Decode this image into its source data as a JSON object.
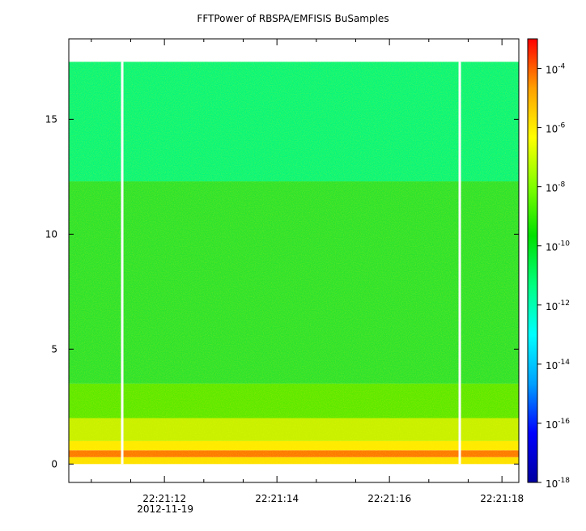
{
  "chart_data": {
    "type": "heatmap",
    "title": "FFTPower of RBSPA/EMFISIS  BuSamples",
    "xlabel": "",
    "ylabel": "",
    "ylim": [
      -0.8,
      18.5
    ],
    "y_ticks": [
      {
        "value": 0,
        "label": "0"
      },
      {
        "value": 5,
        "label": "5"
      },
      {
        "value": 10,
        "label": "10"
      },
      {
        "value": 15,
        "label": "15"
      }
    ],
    "x_ticks": [
      {
        "time": "22:21:12",
        "label": "22:21:12",
        "sublabel": "2012-11-19"
      },
      {
        "time": "22:21:14",
        "label": "22:21:14",
        "sublabel": ""
      },
      {
        "time": "22:21:16",
        "label": "22:21:16",
        "sublabel": ""
      },
      {
        "time": "22:21:18",
        "label": "22:21:18",
        "sublabel": ""
      }
    ],
    "x_range_seconds_of_minute": [
      10.3,
      18.3
    ],
    "minor_ticks_seconds": [
      10.7,
      11.4,
      12.7,
      13.4,
      14.7,
      15.4,
      16.7,
      17.4
    ],
    "data_gaps_seconds": [
      11.25,
      17.25
    ],
    "data_extent": {
      "x_seconds": [
        10.3,
        18.3
      ],
      "y": [
        0,
        17.5
      ]
    },
    "colorbar": {
      "scale": "log",
      "range": [
        1e-18,
        0.001
      ],
      "tick_exponents": [
        -18,
        -16,
        -14,
        -12,
        -10,
        -8,
        -6,
        -4
      ],
      "tick_base": "10",
      "colors": [
        "#0000a0",
        "#0000ff",
        "#00a0ff",
        "#00ffff",
        "#00ff80",
        "#00e000",
        "#80ff00",
        "#ffff00",
        "#ffa000",
        "#ff0000"
      ]
    },
    "bands": [
      {
        "y_range": [
          0,
          0.3
        ],
        "level_exponent": -8.8,
        "color": "#ffe000"
      },
      {
        "y_range": [
          0.3,
          0.6
        ],
        "level_exponent": -7.3,
        "color": "#ff7800"
      },
      {
        "y_range": [
          0.6,
          1.0
        ],
        "level_exponent": -8.5,
        "color": "#ffea00"
      },
      {
        "y_range": [
          1.0,
          2.0
        ],
        "level_exponent": -9.2,
        "color": "#c8f000"
      },
      {
        "y_range": [
          2.0,
          3.5
        ],
        "level_exponent": -9.8,
        "color": "#5ee800"
      },
      {
        "y_range": [
          3.5,
          12.3
        ],
        "level_exponent": -10.2,
        "color": "#2ee22e"
      },
      {
        "y_range": [
          12.3,
          17.5
        ],
        "level_exponent": -11.2,
        "color": "#0af57a"
      }
    ]
  }
}
